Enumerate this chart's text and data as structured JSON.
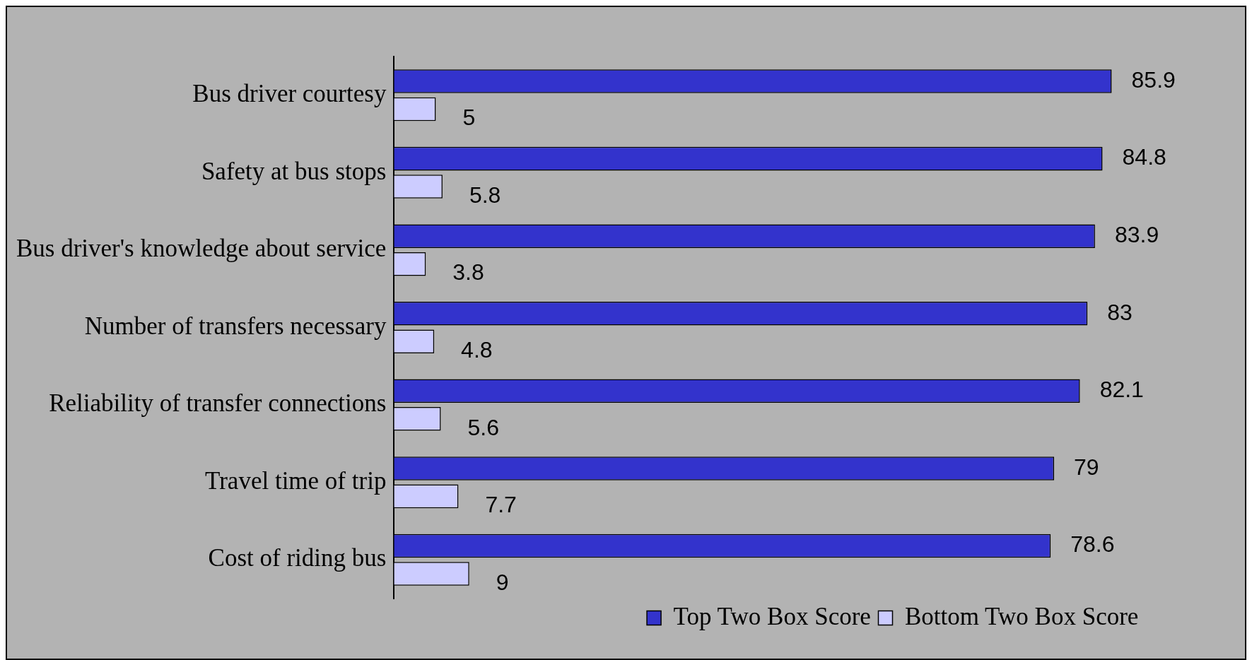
{
  "chart_data": {
    "type": "bar",
    "orientation": "horizontal",
    "categories": [
      "Bus driver courtesy",
      "Safety at bus stops",
      "Bus driver's knowledge about service",
      "Number of transfers necessary",
      "Reliability of transfer connections",
      "Travel time of trip",
      "Cost of riding bus"
    ],
    "series": [
      {
        "name": "Top Two Box Score",
        "color": "#3333cc",
        "values": [
          85.9,
          84.8,
          83.9,
          83,
          82.1,
          79,
          78.6
        ]
      },
      {
        "name": "Bottom Two Box Score",
        "color": "#ccccff",
        "values": [
          5,
          5.8,
          3.8,
          4.8,
          5.6,
          7.7,
          9
        ]
      }
    ],
    "data_labels": true,
    "legend": "bottom right"
  }
}
